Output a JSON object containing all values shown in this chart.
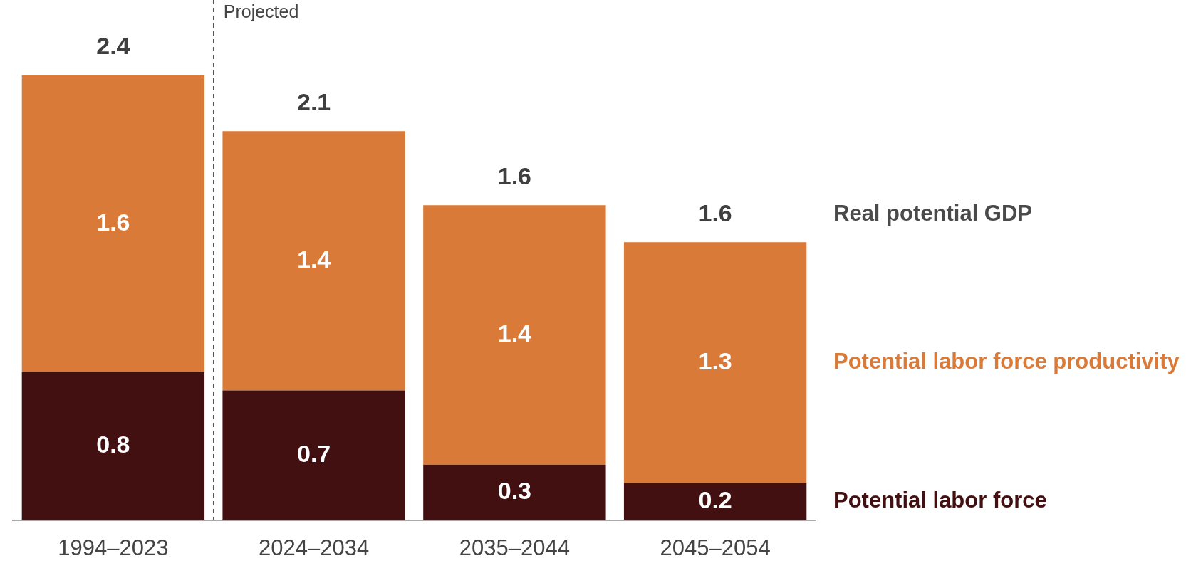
{
  "chart_data": {
    "type": "bar",
    "stacked": true,
    "categories": [
      "1994–2023",
      "2024–2034",
      "2035–2044",
      "2045–2054"
    ],
    "series": [
      {
        "name": "Potential labor force",
        "color": "#431012",
        "values": [
          0.8,
          0.7,
          0.3,
          0.2
        ]
      },
      {
        "name": "Potential labor force productivity",
        "color": "#d97a38",
        "values": [
          1.6,
          1.4,
          1.4,
          1.3
        ]
      }
    ],
    "data_labels": true,
    "totals": [
      "2.4",
      "2.1",
      "1.6",
      "1.6"
    ],
    "annotations": [
      "Real potential GDP",
      "Projected"
    ],
    "tick_labels": "x",
    "grid": false,
    "legend": false
  }
}
